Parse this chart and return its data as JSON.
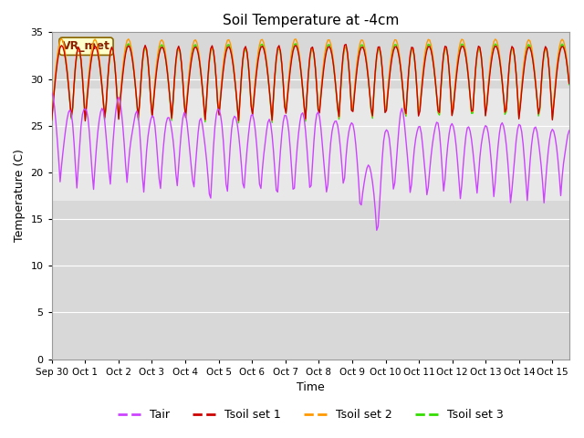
{
  "title": "Soil Temperature at -4cm",
  "xlabel": "Time",
  "ylabel": "Temperature (C)",
  "ylim": [
    0,
    35
  ],
  "background_color": "#ffffff",
  "plot_bg_color": "#d8d8d8",
  "white_band": [
    17,
    29
  ],
  "legend_labels": [
    "Tair",
    "Tsoil set 1",
    "Tsoil set 2",
    "Tsoil set 3"
  ],
  "legend_colors": [
    "#cc44ff",
    "#cc0000",
    "#ff9900",
    "#33dd00"
  ],
  "annotation_text": "VR_met",
  "annotation_bg": "#ffffcc",
  "annotation_border": "#886600",
  "annotation_text_color": "#882200",
  "xtick_labels": [
    "Sep 30",
    "Oct 1",
    "Oct 2",
    "Oct 3",
    "Oct 4",
    "Oct 5",
    "Oct 6",
    "Oct 7",
    "Oct 8",
    "Oct 9",
    "Oct 10",
    "Oct 11",
    "Oct 12",
    "Oct 13",
    "Oct 14",
    "Oct 15"
  ],
  "ytick_values": [
    0,
    5,
    10,
    15,
    20,
    25,
    30,
    35
  ],
  "num_days": 15.5
}
